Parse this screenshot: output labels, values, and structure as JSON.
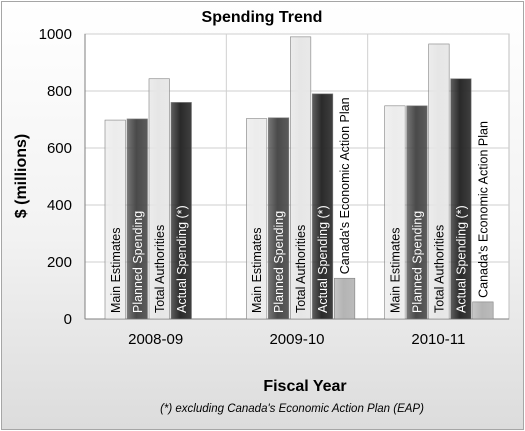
{
  "chart_data": {
    "type": "bar",
    "title": "Spending Trend",
    "xlabel": "Fiscal Year",
    "ylabel": "$ (millions)",
    "note": "(*) excluding Canada's Economic Action Plan (EAP)",
    "categories": [
      "2008-09",
      "2009-10",
      "2010-11"
    ],
    "ylim": [
      0,
      1000
    ],
    "yticks": [
      "0",
      "200",
      "400",
      "600",
      "800",
      "1000"
    ],
    "grid": true,
    "legend": "none",
    "series": [
      {
        "name": "Main Estimates",
        "color": "#ececec",
        "label_color": "#000000",
        "values": [
          698,
          703,
          748
        ]
      },
      {
        "name": "Planned Spending",
        "color": "#4a4a4a",
        "label_color": "#ffffff",
        "values": [
          702,
          706,
          748
        ]
      },
      {
        "name": "Total Authorities",
        "color": "#e6e6e6",
        "label_color": "#000000",
        "values": [
          843,
          990,
          965
        ]
      },
      {
        "name": "Actual Spending  (*)",
        "color": "#2a2a2a",
        "label_color": "#ffffff",
        "values": [
          760,
          790,
          843
        ]
      },
      {
        "name": "Canada's Economic Action Plan",
        "color": "#b4b4b4",
        "label_color": "#000000",
        "values": [
          null,
          143,
          60
        ]
      }
    ]
  }
}
